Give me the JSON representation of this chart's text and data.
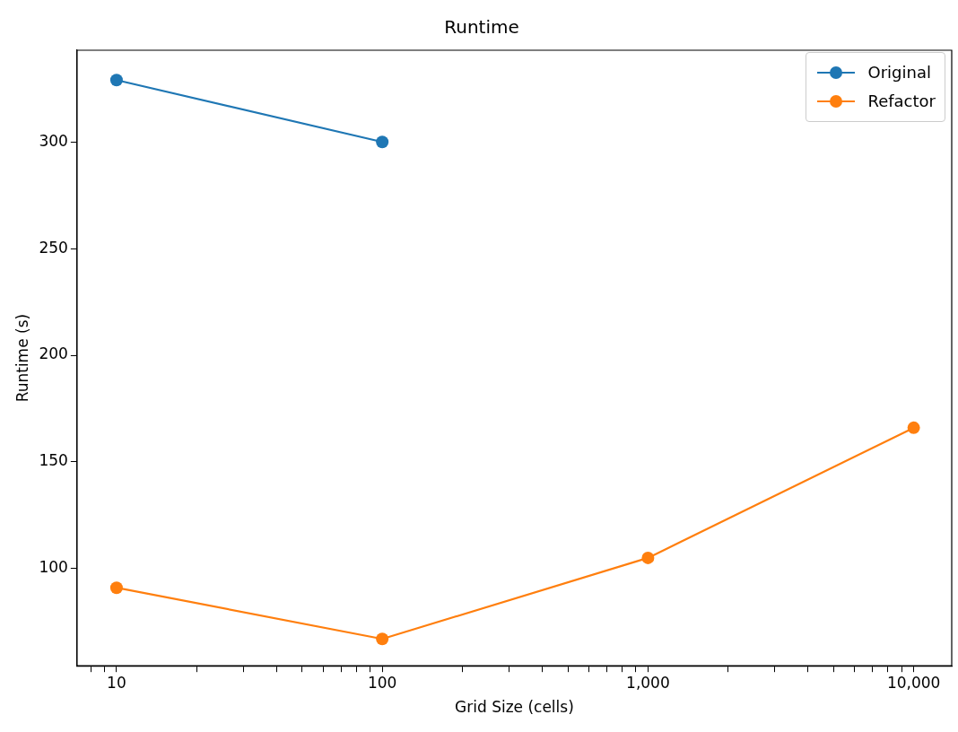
{
  "chart_data": {
    "type": "line",
    "title": "Runtime",
    "xlabel": "Grid Size (cells)",
    "ylabel": "Runtime (s)",
    "x": [
      10,
      100,
      1000,
      10000
    ],
    "series": [
      {
        "name": "Original",
        "color": "#1f77b4",
        "values": [
          329,
          300,
          null,
          null
        ]
      },
      {
        "name": "Refactor",
        "color": "#ff7f0e",
        "values": [
          91,
          67,
          105,
          166
        ]
      }
    ],
    "log": "x",
    "xlim": [
      7.1,
      13900
    ],
    "xticks": [
      {
        "value": 8,
        "label": null
      },
      {
        "value": 9,
        "label": null
      },
      {
        "value": 10,
        "label": "10"
      },
      {
        "value": 20,
        "label": null
      },
      {
        "value": 30,
        "label": null
      },
      {
        "value": 40,
        "label": null
      },
      {
        "value": 50,
        "label": null
      },
      {
        "value": 60,
        "label": null
      },
      {
        "value": 70,
        "label": null
      },
      {
        "value": 80,
        "label": null
      },
      {
        "value": 90,
        "label": null
      },
      {
        "value": 100,
        "label": "100"
      },
      {
        "value": 200,
        "label": null
      },
      {
        "value": 300,
        "label": null
      },
      {
        "value": 400,
        "label": null
      },
      {
        "value": 500,
        "label": null
      },
      {
        "value": 600,
        "label": null
      },
      {
        "value": 700,
        "label": null
      },
      {
        "value": 800,
        "label": null
      },
      {
        "value": 900,
        "label": null
      },
      {
        "value": 1000,
        "label": "1,000"
      },
      {
        "value": 2000,
        "label": null
      },
      {
        "value": 3000,
        "label": null
      },
      {
        "value": 4000,
        "label": null
      },
      {
        "value": 5000,
        "label": null
      },
      {
        "value": 6000,
        "label": null
      },
      {
        "value": 7000,
        "label": null
      },
      {
        "value": 8000,
        "label": null
      },
      {
        "value": 9000,
        "label": null
      },
      {
        "value": 10000,
        "label": "10,000"
      }
    ],
    "ylim": [
      54.4,
      343
    ],
    "yticks": [
      100,
      150,
      200,
      250,
      300
    ],
    "grid": false,
    "legend": "top right",
    "marker": "circle",
    "line_style": "solid"
  }
}
